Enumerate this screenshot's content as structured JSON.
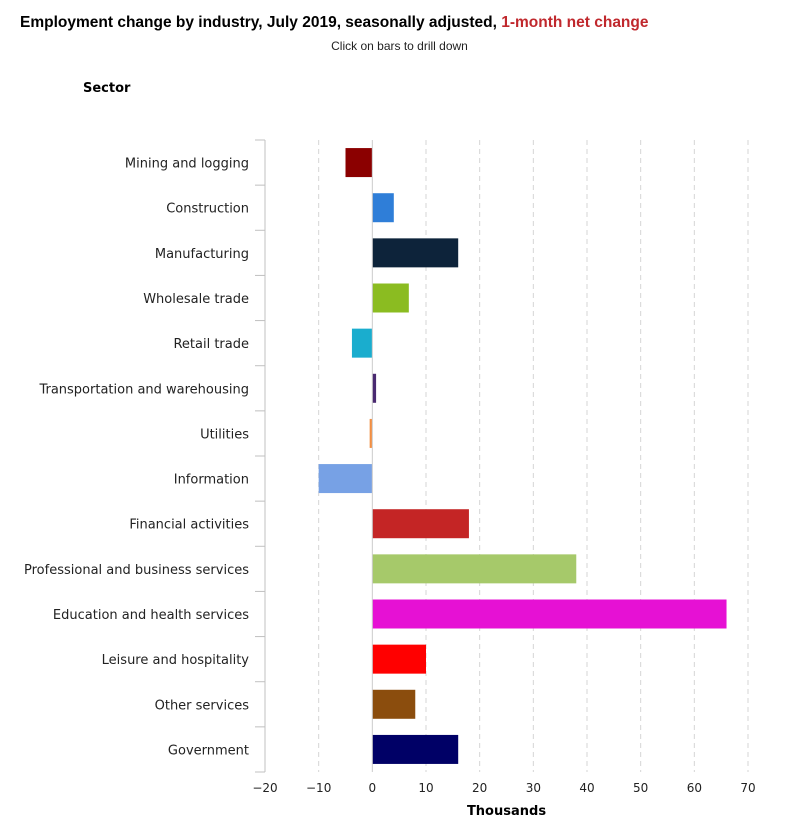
{
  "header": {
    "title": "Employment change by industry, July 2019, seasonally adjusted, ",
    "title_accent": "1-month net change",
    "subtitle": "Click on bars to drill down",
    "sector_label": "Sector"
  },
  "chart_data": {
    "type": "bar",
    "orientation": "horizontal",
    "title": "Employment change by industry, July 2019, seasonally adjusted, 1-month net change",
    "xlabel": "Thousands",
    "ylabel": "Sector",
    "xlim": [
      -20,
      70
    ],
    "xticks": [
      -20,
      -10,
      0,
      10,
      20,
      30,
      40,
      50,
      60,
      70
    ],
    "xtick_labels": [
      "−20",
      "−10",
      "0",
      "10",
      "20",
      "30",
      "40",
      "50",
      "60",
      "70"
    ],
    "grid": "vertical-dashed",
    "categories": [
      "Mining and logging",
      "Construction",
      "Manufacturing",
      "Wholesale trade",
      "Retail trade",
      "Transportation and warehousing",
      "Utilities",
      "Information",
      "Financial activities",
      "Professional and business services",
      "Education and health services",
      "Leisure and hospitality",
      "Other services",
      "Government"
    ],
    "values": [
      -5,
      4,
      16,
      6.8,
      -3.8,
      0.7,
      -0.5,
      -10,
      18,
      38,
      66,
      10,
      8,
      16
    ],
    "colors": [
      "#8b0000",
      "#2f7ed8",
      "#0d233a",
      "#8bbc21",
      "#1aadce",
      "#492970",
      "#f28f43",
      "#77a1e5",
      "#c42525",
      "#a6c96a",
      "#e611d4",
      "#ff0000",
      "#8b4d0d",
      "#000066"
    ]
  }
}
